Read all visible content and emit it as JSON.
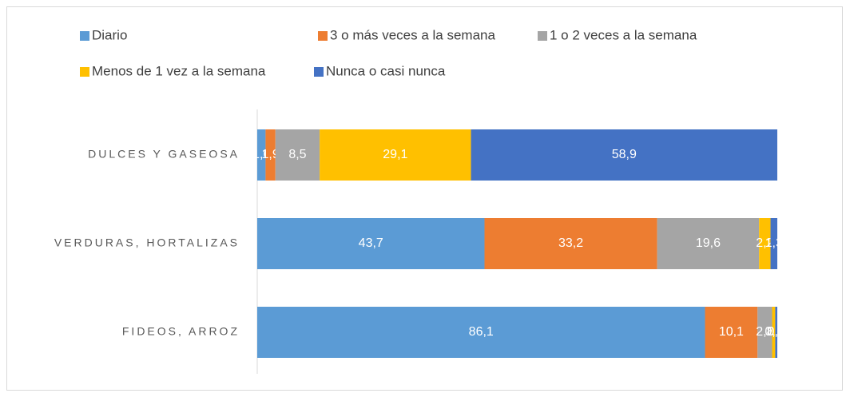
{
  "chart_data": {
    "type": "stacked-bar-horizontal",
    "categories": [
      "DULCES Y GASEOSA",
      "VERDURAS, HORTALIZAS",
      "FIDEOS, ARROZ"
    ],
    "series": [
      {
        "name": "Diario",
        "color": "#5b9bd5",
        "values": [
          1.6,
          43.7,
          86.1
        ],
        "value_labels": [
          "1,6",
          "43,7",
          "86,1"
        ]
      },
      {
        "name": "3 o más veces a la semana",
        "color": "#ed7d31",
        "values": [
          1.9,
          33.2,
          10.1
        ],
        "value_labels": [
          "1,9",
          "33,2",
          "10,1"
        ]
      },
      {
        "name": "1 o 2 veces a la semana",
        "color": "#a5a5a5",
        "values": [
          8.5,
          19.6,
          2.8
        ],
        "value_labels": [
          "8,5",
          "19,6",
          "2,8"
        ]
      },
      {
        "name": "Menos de 1 vez a la semana",
        "color": "#ffc000",
        "values": [
          29.1,
          2.2,
          0.6
        ],
        "value_labels": [
          "29,1",
          "2,2",
          "0,6"
        ]
      },
      {
        "name": "Nunca o casi nunca",
        "color": "#4472c4",
        "values": [
          58.9,
          1.3,
          0.4
        ],
        "value_labels": [
          "58,9",
          "1,3",
          "0,4"
        ]
      }
    ]
  }
}
